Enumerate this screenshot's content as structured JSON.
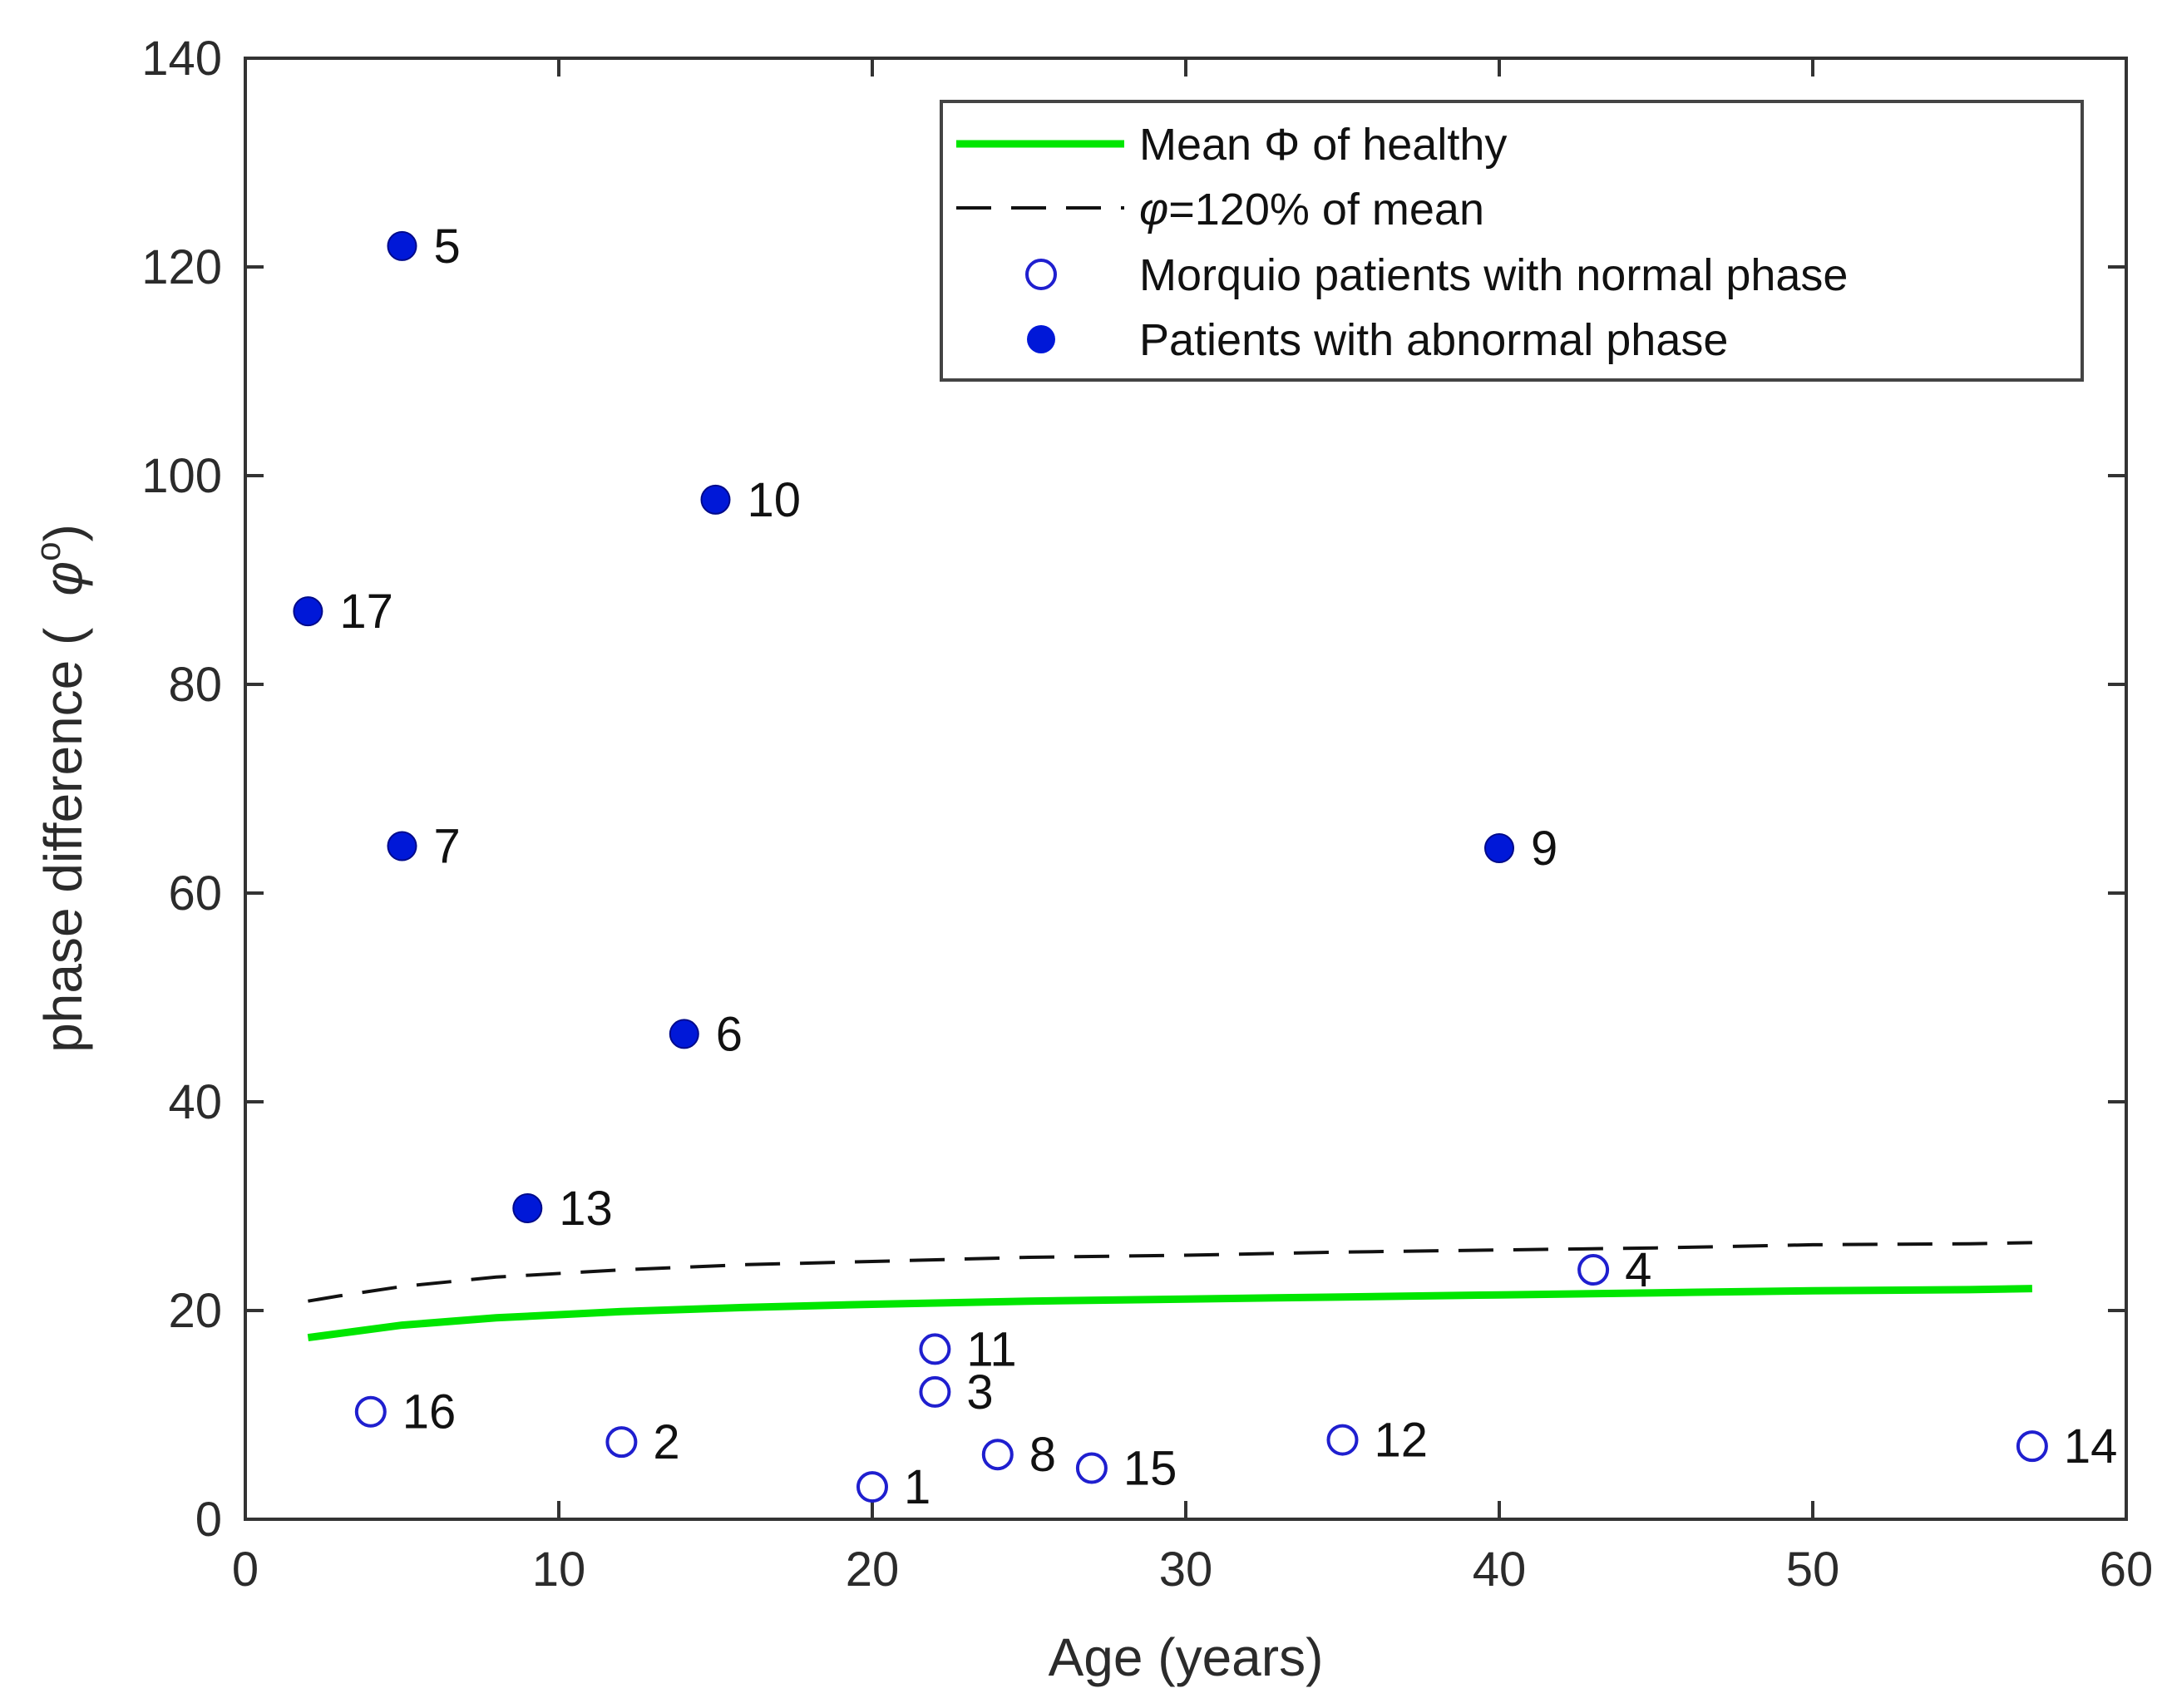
{
  "chart_data": {
    "type": "scatter",
    "title": "",
    "xlabel": "Age (years)",
    "ylabel_prefix": "phase difference (",
    "ylabel_symbol": "φ",
    "ylabel_sup": "o",
    "ylabel_suffix": ")",
    "xlim": [
      0,
      60
    ],
    "ylim": [
      0,
      140
    ],
    "xticks": [
      0,
      10,
      20,
      30,
      40,
      50,
      60
    ],
    "yticks": [
      0,
      20,
      40,
      60,
      80,
      100,
      120,
      140
    ],
    "grid": false,
    "legend_position": "top-right",
    "colors": {
      "healthy": "#00e600",
      "threshold": "#111111",
      "normal": "#1f1fcf",
      "abnormal": "#0018d8",
      "axis": "#333333"
    },
    "series": [
      {
        "name": "Mean Φ of healthy",
        "kind": "line",
        "style": "solid",
        "x": [
          2,
          3,
          5,
          8,
          12,
          16,
          20,
          25,
          30,
          35,
          40,
          45,
          50,
          55,
          57
        ],
        "y": [
          17.4,
          17.8,
          18.6,
          19.3,
          19.9,
          20.3,
          20.6,
          20.9,
          21.1,
          21.3,
          21.5,
          21.7,
          21.9,
          22.0,
          22.1
        ]
      },
      {
        "name": "φ=120% of mean",
        "kind": "line",
        "style": "dashed",
        "x": [
          2,
          3,
          5,
          8,
          12,
          16,
          20,
          25,
          30,
          35,
          40,
          45,
          50,
          55,
          57
        ],
        "y": [
          20.9,
          21.4,
          22.3,
          23.2,
          23.9,
          24.4,
          24.7,
          25.1,
          25.3,
          25.6,
          25.8,
          26.0,
          26.3,
          26.4,
          26.5
        ]
      },
      {
        "name": "Morquio patients with normal phase",
        "kind": "scatter",
        "marker": "open-circle",
        "points": [
          {
            "id": "16",
            "x": 4,
            "y": 10.3
          },
          {
            "id": "2",
            "x": 12,
            "y": 7.4
          },
          {
            "id": "1",
            "x": 20,
            "y": 3.1
          },
          {
            "id": "11",
            "x": 22,
            "y": 16.3
          },
          {
            "id": "3",
            "x": 22,
            "y": 12.2
          },
          {
            "id": "8",
            "x": 24,
            "y": 6.2
          },
          {
            "id": "15",
            "x": 27,
            "y": 4.9
          },
          {
            "id": "12",
            "x": 35,
            "y": 7.6
          },
          {
            "id": "4",
            "x": 43,
            "y": 23.9
          },
          {
            "id": "14",
            "x": 57,
            "y": 7.0
          }
        ]
      },
      {
        "name": "Patients with abnormal phase",
        "kind": "scatter",
        "marker": "filled-circle",
        "points": [
          {
            "id": "5",
            "x": 5,
            "y": 122
          },
          {
            "id": "10",
            "x": 15,
            "y": 97.7
          },
          {
            "id": "17",
            "x": 2,
            "y": 87
          },
          {
            "id": "7",
            "x": 5,
            "y": 64.5
          },
          {
            "id": "9",
            "x": 40,
            "y": 64.3
          },
          {
            "id": "6",
            "x": 14,
            "y": 46.5
          },
          {
            "id": "13",
            "x": 9,
            "y": 29.8
          }
        ]
      }
    ],
    "legend": [
      {
        "key": "healthy",
        "label_prefix": "Mean ",
        "label_symbol": "Φ",
        "label_suffix": " of healthy"
      },
      {
        "key": "threshold",
        "label_prefix": "",
        "label_symbol": "φ",
        "label_suffix": "=120% of mean"
      },
      {
        "key": "normal",
        "label_prefix": "Morquio patients with normal phase",
        "label_symbol": "",
        "label_suffix": ""
      },
      {
        "key": "abnormal",
        "label_prefix": "Patients with abnormal phase",
        "label_symbol": "",
        "label_suffix": ""
      }
    ]
  }
}
